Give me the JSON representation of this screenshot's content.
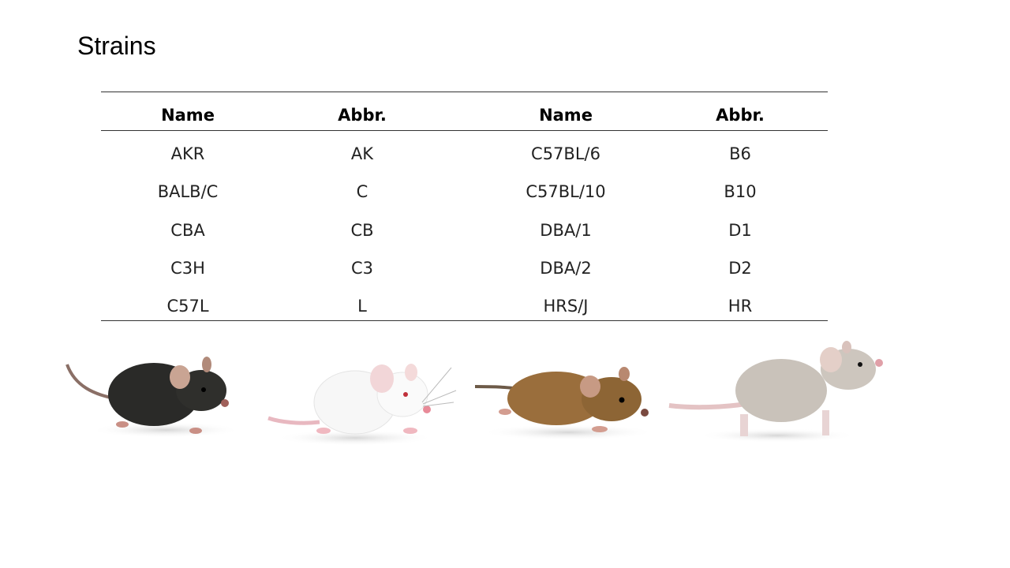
{
  "title": "Strains",
  "table": {
    "header": [
      "Name",
      "Abbr.",
      "Name",
      "Abbr."
    ],
    "rows": [
      [
        "AKR",
        "AK",
        "C57BL/6",
        "B6"
      ],
      [
        "BALB/C",
        "C",
        "C57BL/10",
        "B10"
      ],
      [
        "CBA",
        "CB",
        "DBA/1",
        "D1"
      ],
      [
        "C3H",
        "C3",
        "DBA/2",
        "D2"
      ],
      [
        "C57L",
        "L",
        "HRS/J",
        "HR"
      ]
    ]
  }
}
